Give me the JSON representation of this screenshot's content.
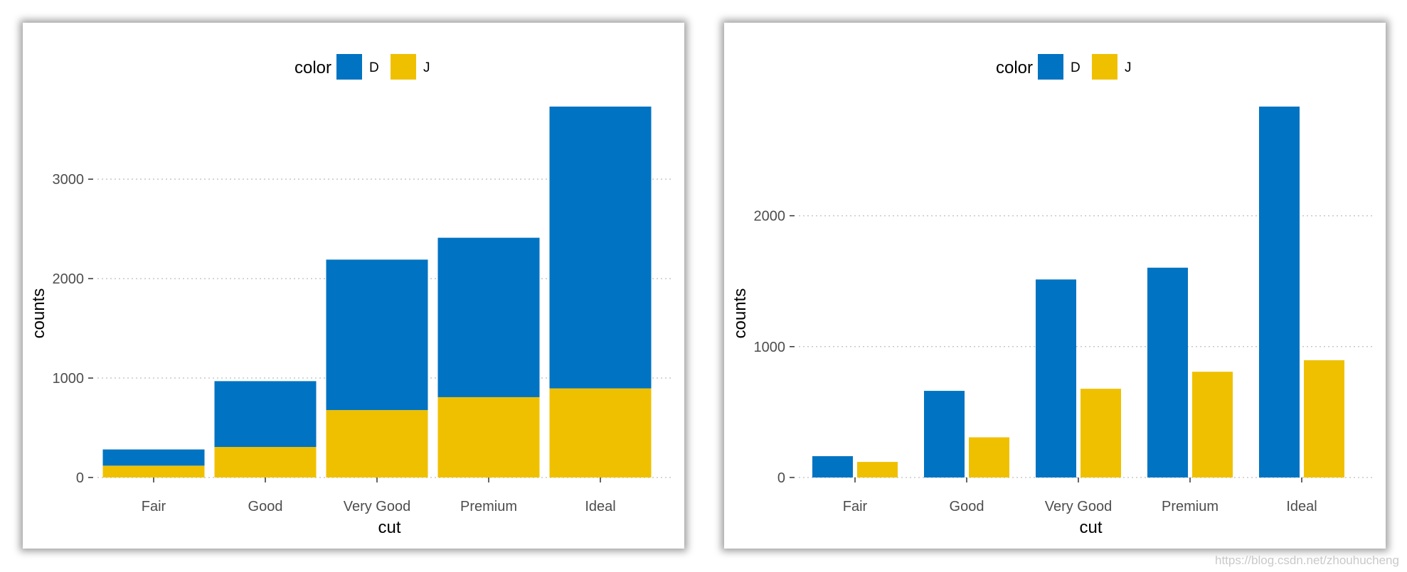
{
  "chart_data": [
    {
      "type": "bar",
      "bar_mode": "stacked",
      "categories": [
        "Fair",
        "Good",
        "Very Good",
        "Premium",
        "Ideal"
      ],
      "series": [
        {
          "name": "D",
          "values": [
            163,
            662,
            1513,
            1603,
            2834
          ]
        },
        {
          "name": "J",
          "values": [
            119,
            307,
            678,
            808,
            896
          ]
        }
      ],
      "xlabel": "cut",
      "ylabel": "counts",
      "ylim": [
        0,
        3730
      ],
      "yticks": [
        0,
        1000,
        2000,
        3000
      ],
      "grid": "horizontal dotted",
      "legend": {
        "title": "color",
        "position": "top"
      }
    },
    {
      "type": "bar",
      "bar_mode": "grouped",
      "categories": [
        "Fair",
        "Good",
        "Very Good",
        "Premium",
        "Ideal"
      ],
      "series": [
        {
          "name": "D",
          "values": [
            163,
            662,
            1513,
            1603,
            2834
          ]
        },
        {
          "name": "J",
          "values": [
            119,
            307,
            678,
            808,
            896
          ]
        }
      ],
      "xlabel": "cut",
      "ylabel": "counts",
      "ylim": [
        0,
        2834
      ],
      "yticks": [
        0,
        1000,
        2000
      ],
      "grid": "horizontal dotted",
      "legend": {
        "title": "color",
        "position": "top"
      }
    }
  ],
  "colors": {
    "D": "#0073c2",
    "J": "#efc000"
  },
  "watermark": "https://blog.csdn.net/zhouhucheng"
}
